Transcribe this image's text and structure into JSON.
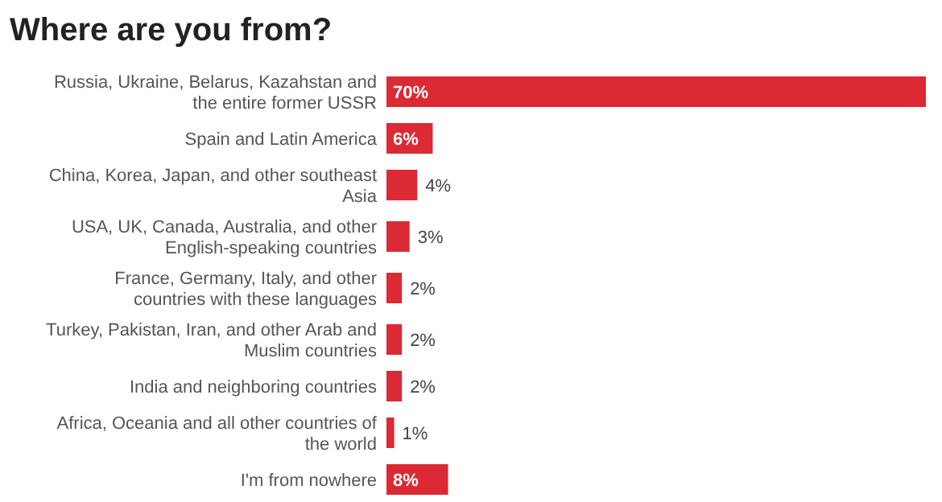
{
  "chart_data": {
    "type": "bar",
    "orientation": "horizontal",
    "xlim": [
      0,
      70
    ],
    "title": "Where are you from?",
    "categories": [
      "Russia, Ukraine, Belarus, Kazahstan and the entire former USSR",
      "Spain and Latin America",
      "China, Korea, Japan, and other southeast Asia",
      "USA, UK, Canada, Australia, and other English-speaking countries",
      "France, Germany, Italy, and other countries with these languages",
      "Turkey, Pakistan, Iran, and other Arab and Muslim countries",
      "India and neighboring countries",
      "Africa, Oceania and all other countries of the world",
      "I'm from nowhere"
    ],
    "values": [
      70,
      6,
      4,
      3,
      2,
      2,
      2,
      1,
      8
    ],
    "value_labels": [
      "70%",
      "6%",
      "4%",
      "3%",
      "2%",
      "2%",
      "2%",
      "1%",
      "8%"
    ],
    "color": "#db2a34"
  }
}
